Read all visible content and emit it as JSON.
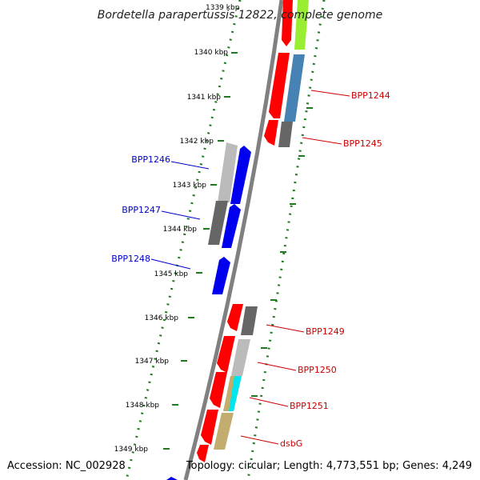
{
  "title": "Bordetella parapertussis 12822, complete genome",
  "footer": {
    "accession": "Accession: NC_002928",
    "summary": "Topology: circular; Length: 4,773,551 bp; Genes: 4,249"
  },
  "colors": {
    "backbone": "#808080",
    "tick": "#1f7a1f",
    "forward_label": "#0000cc",
    "reverse_label": "#cc0000"
  },
  "scale": {
    "unit": "kbp",
    "top_partial_label": "1339 kbp",
    "labels": [
      "1340 kbp",
      "1341 kbp",
      "1342 kbp",
      "1343 kbp",
      "1344 kbp",
      "1345 kbp",
      "1346 kbp",
      "1347 kbp",
      "1348 kbp",
      "1349 kbp"
    ]
  },
  "gene_labels": [
    {
      "name": "BPP1244",
      "strand": "reverse"
    },
    {
      "name": "BPP1245",
      "strand": "reverse"
    },
    {
      "name": "BPP1246",
      "strand": "forward"
    },
    {
      "name": "BPP1247",
      "strand": "forward"
    },
    {
      "name": "BPP1248",
      "strand": "forward"
    },
    {
      "name": "BPP1249",
      "strand": "reverse"
    },
    {
      "name": "BPP1250",
      "strand": "reverse"
    },
    {
      "name": "BPP1251",
      "strand": "reverse"
    },
    {
      "name": "dsbG",
      "strand": "reverse"
    }
  ]
}
